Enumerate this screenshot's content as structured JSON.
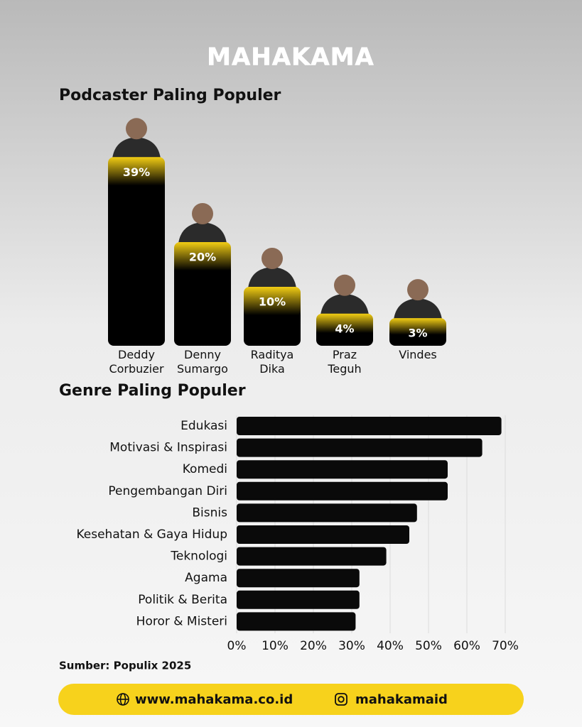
{
  "brand": "MAHAKAMA",
  "chart_data": [
    {
      "type": "bar",
      "title": "Podcaster Paling Populer",
      "categories": [
        "Deddy Corbuzier",
        "Denny Sumargo",
        "Raditya Dika",
        "Praz Teguh",
        "Vindes"
      ],
      "values": [
        39,
        20,
        10,
        4,
        3
      ],
      "value_labels": [
        "39%",
        "20%",
        "10%",
        "4%",
        "3%"
      ],
      "color": "#f2cd14"
    },
    {
      "type": "barh",
      "title": "Genre Paling Populer",
      "categories": [
        "Edukasi",
        "Motivasi & Inspirasi",
        "Komedi",
        "Pengembangan Diri",
        "Bisnis",
        "Kesehatan & Gaya Hidup",
        "Teknologi",
        "Agama",
        "Politik & Berita",
        "Horor & Misteri"
      ],
      "values": [
        69,
        64,
        55,
        55,
        47,
        45,
        39,
        32,
        32,
        31
      ],
      "color": "#0a0a0a",
      "xlim": [
        0,
        70
      ],
      "xticks": [
        {
          "value": 0,
          "label": "0%"
        },
        {
          "value": 10,
          "label": "10%"
        },
        {
          "value": 20,
          "label": "20%"
        },
        {
          "value": 30,
          "label": "30%"
        },
        {
          "value": 40,
          "label": "40%"
        },
        {
          "value": 50,
          "label": "50%"
        },
        {
          "value": 60,
          "label": "60%"
        },
        {
          "value": 70,
          "label": "70%"
        }
      ],
      "grid": true
    }
  ],
  "source": "Sumber: Populix 2025",
  "footer": {
    "website": "www.mahakama.co.id",
    "instagram": "mahakamaid"
  }
}
